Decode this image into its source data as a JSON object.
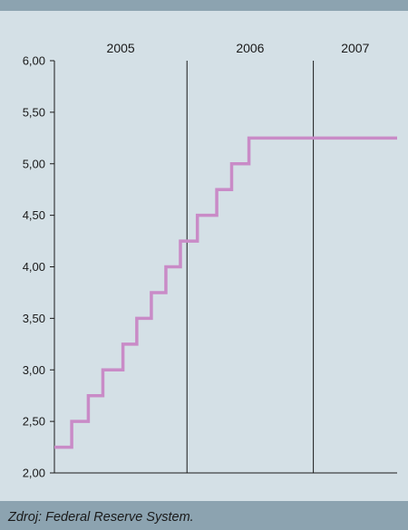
{
  "source": "Zdroj: Federal Reserve System.",
  "colors": {
    "background": "#d4e0e6",
    "bar": "#8ca3b0",
    "line": "#c98bc7",
    "axis": "#1a1a1a"
  },
  "chart_data": {
    "type": "line",
    "title": "",
    "xlabel": "",
    "ylabel": "",
    "step": true,
    "year_labels": [
      "2005",
      "2006",
      "2007"
    ],
    "x_range": [
      "2004-12-14",
      "2007-08-31"
    ],
    "year_boundaries": [
      "2006-01-01",
      "2007-01-01"
    ],
    "ylim": [
      2.0,
      6.0
    ],
    "yticks": [
      "2,00",
      "2,50",
      "3,00",
      "3,50",
      "4,00",
      "4,50",
      "5,00",
      "5,50",
      "6,00"
    ],
    "grid": false,
    "series": [
      {
        "x": [
          "2004-12-14",
          "2005-02-02",
          "2005-03-22",
          "2005-05-03",
          "2005-06-30",
          "2005-08-09",
          "2005-09-20",
          "2005-11-01",
          "2005-12-13",
          "2006-01-31",
          "2006-03-28",
          "2006-05-10",
          "2006-06-29",
          "2007-08-31"
        ],
        "values": [
          2.25,
          2.5,
          2.75,
          3.0,
          3.25,
          3.5,
          3.75,
          4.0,
          4.25,
          4.5,
          4.75,
          5.0,
          5.25,
          5.25
        ]
      }
    ]
  }
}
